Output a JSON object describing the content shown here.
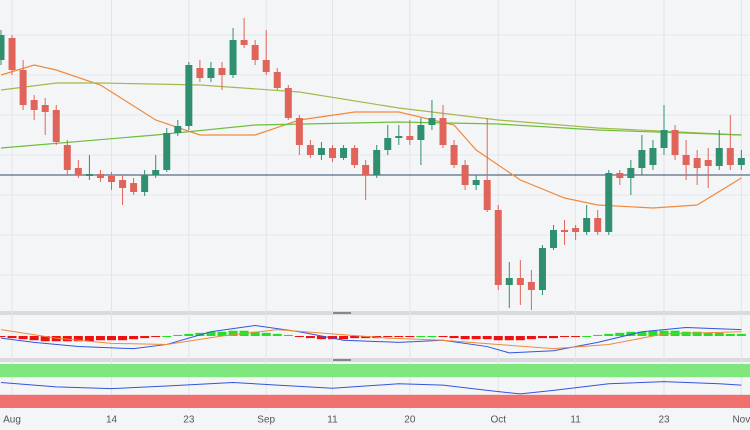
{
  "chart_data": {
    "type": "candlestick",
    "categories": [
      null,
      "Aug",
      null,
      null,
      null,
      null,
      null,
      null,
      null,
      null,
      "14",
      null,
      null,
      null,
      null,
      null,
      null,
      "23",
      null,
      null,
      null,
      null,
      null,
      null,
      "Sep",
      null,
      null,
      null,
      null,
      null,
      "11",
      null,
      null,
      null,
      null,
      null,
      null,
      "20",
      null,
      null,
      null,
      null,
      null,
      null,
      null,
      "Oct",
      null,
      null,
      null,
      null,
      null,
      null,
      "11",
      null,
      null,
      null,
      null,
      null,
      null,
      null,
      "23",
      null,
      null,
      null,
      null,
      null,
      null,
      "Nov"
    ],
    "open": [
      250,
      272,
      240,
      210,
      205,
      200,
      165,
      142,
      134,
      136,
      134,
      130,
      127,
      118,
      135,
      140,
      177,
      184,
      242,
      232,
      242,
      235,
      270,
      265,
      250,
      238,
      222,
      192,
      165,
      155,
      162,
      152,
      162,
      145,
      135,
      160,
      172,
      174,
      170,
      185,
      192,
      165,
      145,
      125,
      130,
      100,
      25,
      32,
      28,
      20,
      62,
      80,
      82,
      78,
      92,
      78,
      137,
      132,
      142,
      145,
      162,
      180,
      155,
      152,
      150,
      144,
      162,
      145
    ],
    "high": [
      280,
      275,
      250,
      215,
      212,
      205,
      170,
      150,
      155,
      140,
      138,
      135,
      132,
      140,
      155,
      182,
      190,
      248,
      250,
      248,
      248,
      282,
      292,
      270,
      280,
      242,
      225,
      195,
      170,
      168,
      165,
      165,
      165,
      150,
      165,
      185,
      185,
      190,
      192,
      210,
      205,
      170,
      150,
      135,
      192,
      105,
      48,
      50,
      40,
      65,
      85,
      90,
      85,
      105,
      100,
      140,
      140,
      150,
      175,
      170,
      205,
      185,
      170,
      160,
      162,
      180,
      195,
      160
    ],
    "low": [
      245,
      235,
      200,
      190,
      175,
      165,
      135,
      132,
      130,
      128,
      120,
      105,
      115,
      114,
      132,
      138,
      174,
      180,
      228,
      228,
      220,
      232,
      262,
      245,
      235,
      220,
      190,
      155,
      152,
      150,
      148,
      150,
      142,
      110,
      132,
      155,
      165,
      165,
      145,
      180,
      162,
      142,
      120,
      120,
      98,
      20,
      2,
      5,
      0,
      15,
      60,
      65,
      70,
      75,
      75,
      75,
      125,
      115,
      135,
      140,
      155,
      150,
      130,
      125,
      122,
      140,
      140,
      140
    ],
    "close": [
      275,
      240,
      205,
      200,
      198,
      168,
      140,
      135,
      136,
      132,
      128,
      122,
      118,
      135,
      140,
      177,
      184,
      245,
      232,
      242,
      235,
      270,
      265,
      250,
      238,
      222,
      192,
      165,
      155,
      162,
      152,
      162,
      145,
      135,
      160,
      172,
      174,
      170,
      185,
      192,
      165,
      145,
      125,
      130,
      100,
      25,
      32,
      25,
      20,
      62,
      80,
      78,
      78,
      92,
      78,
      137,
      132,
      142,
      160,
      162,
      180,
      155,
      145,
      142,
      144,
      162,
      145,
      152
    ],
    "up_color": "#2f8f6f",
    "down_color": "#e0645a",
    "ylim": [
      0,
      310
    ],
    "reference_line": 135,
    "reference_color": "#34486b",
    "overlays": [
      {
        "color": "#f08a3c",
        "x": [
          0,
          3,
          5,
          9,
          14,
          18,
          23,
          27,
          32,
          36,
          41,
          43,
          47,
          51,
          54,
          59,
          63,
          67
        ],
        "values": [
          235,
          245,
          240,
          225,
          190,
          175,
          175,
          190,
          198,
          198,
          185,
          160,
          130,
          112,
          105,
          102,
          105,
          132
        ]
      },
      {
        "color": "#a6b84a",
        "x": [
          0,
          5,
          9,
          18,
          27,
          36,
          45,
          54,
          67
        ],
        "values": [
          220,
          227,
          227,
          225,
          218,
          202,
          190,
          182,
          175
        ]
      },
      {
        "color": "#6cbf3c",
        "x": [
          0,
          14,
          23,
          36,
          45,
          54,
          67
        ],
        "values": [
          162,
          175,
          185,
          188,
          186,
          180,
          175
        ]
      }
    ],
    "macd": {
      "ylim": [
        -18,
        18
      ],
      "histogram": [
        -1,
        -2,
        -3,
        -4,
        -5,
        -5,
        -5,
        -5,
        -5,
        -4,
        -4,
        -4,
        -3,
        -2,
        -1,
        0,
        1,
        2,
        3,
        4,
        4,
        5,
        5,
        4,
        3,
        2,
        1,
        -1,
        -2,
        -3,
        -3,
        -3,
        -2,
        -2,
        -2,
        -1,
        -1,
        -1,
        0,
        0,
        -1,
        -2,
        -3,
        -3,
        -3,
        -4,
        -4,
        -4,
        -3,
        -2,
        -2,
        -1,
        -1,
        0,
        1,
        2,
        3,
        4,
        4,
        5,
        5,
        5,
        4,
        4,
        3,
        3,
        2,
        2
      ],
      "up_color": "#22e022",
      "down_color": "#ee1111",
      "lines": [
        {
          "color": "#3355dd",
          "x": [
            0,
            3,
            7,
            12,
            15,
            19,
            23,
            27,
            31,
            36,
            40,
            44,
            46,
            50,
            54,
            58,
            62,
            67
          ],
          "values": [
            -2,
            -6,
            -10,
            -12,
            -8,
            4,
            10,
            4,
            -4,
            -6,
            -4,
            -10,
            -16,
            -14,
            -6,
            4,
            8,
            6
          ]
        },
        {
          "color": "#f08a3c",
          "x": [
            0,
            5,
            10,
            15,
            20,
            25,
            30,
            35,
            40,
            45,
            50,
            55,
            60,
            67
          ],
          "values": [
            6,
            -2,
            -7,
            -8,
            0,
            6,
            2,
            -2,
            -4,
            -8,
            -12,
            -8,
            2,
            4
          ]
        }
      ]
    },
    "rsi": {
      "ylim": [
        0,
        100
      ],
      "bands": [
        {
          "range": [
            70,
            100
          ],
          "color": "#7ee87e"
        },
        {
          "range": [
            0,
            30
          ],
          "color": "#f07070"
        }
      ],
      "line": {
        "color": "#3355dd",
        "x": [
          0,
          5,
          10,
          15,
          21,
          25,
          30,
          36,
          40,
          44,
          47,
          50,
          55,
          60,
          65,
          67
        ],
        "values": [
          58,
          48,
          44,
          50,
          58,
          52,
          45,
          55,
          52,
          40,
          32,
          40,
          55,
          60,
          55,
          52
        ]
      }
    }
  }
}
